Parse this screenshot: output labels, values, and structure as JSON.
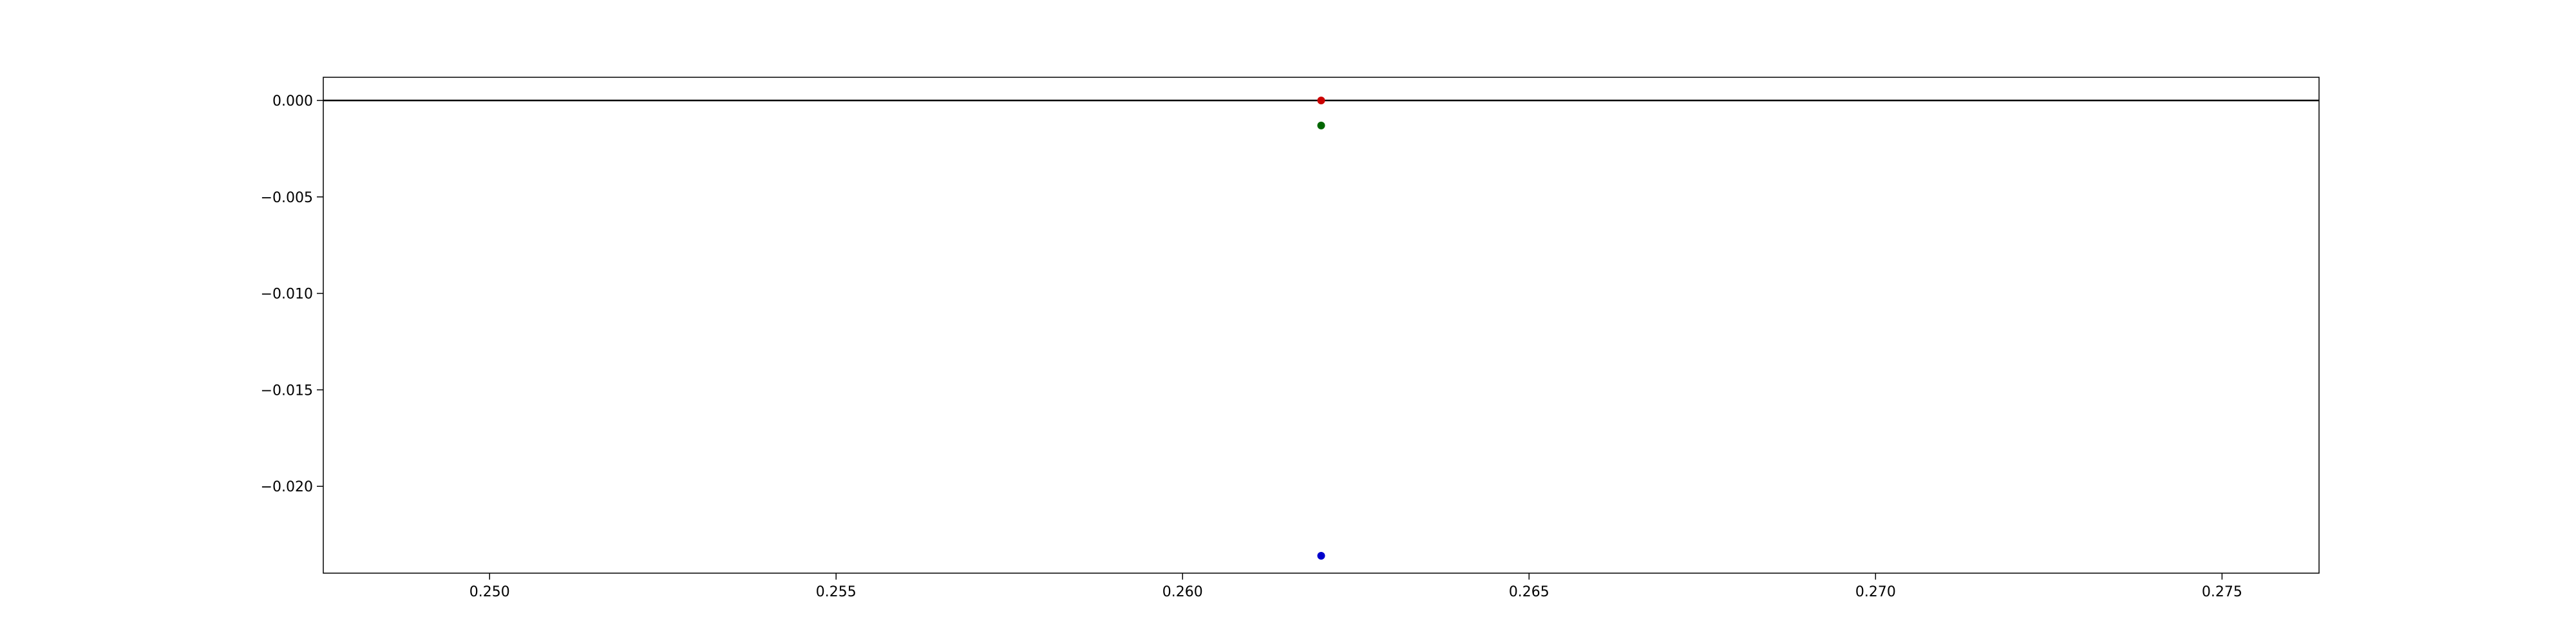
{
  "chart_data": {
    "type": "scatter",
    "title": "",
    "xlabel": "",
    "ylabel": "",
    "xlim": [
      0.2476,
      0.2764
    ],
    "ylim": [
      -0.0245,
      0.0012
    ],
    "grid": false,
    "x_ticks": [
      0.25,
      0.255,
      0.26,
      0.265,
      0.27,
      0.275
    ],
    "x_tick_labels": [
      "0.250",
      "0.255",
      "0.260",
      "0.265",
      "0.270",
      "0.275"
    ],
    "y_ticks": [
      0.0,
      -0.005,
      -0.01,
      -0.015,
      -0.02
    ],
    "y_tick_labels": [
      "0.000",
      "−0.005",
      "−0.010",
      "−0.015",
      "−0.020"
    ],
    "hline": {
      "y": 0.0,
      "color": "#000000"
    },
    "series": [
      {
        "color": "#cc0000",
        "points": [
          {
            "x": 0.262,
            "y": 0.0
          }
        ]
      },
      {
        "color": "#006600",
        "points": [
          {
            "x": 0.262,
            "y": -0.0013
          }
        ]
      },
      {
        "color": "#0000cc",
        "points": [
          {
            "x": 0.262,
            "y": -0.0236
          }
        ]
      }
    ]
  }
}
